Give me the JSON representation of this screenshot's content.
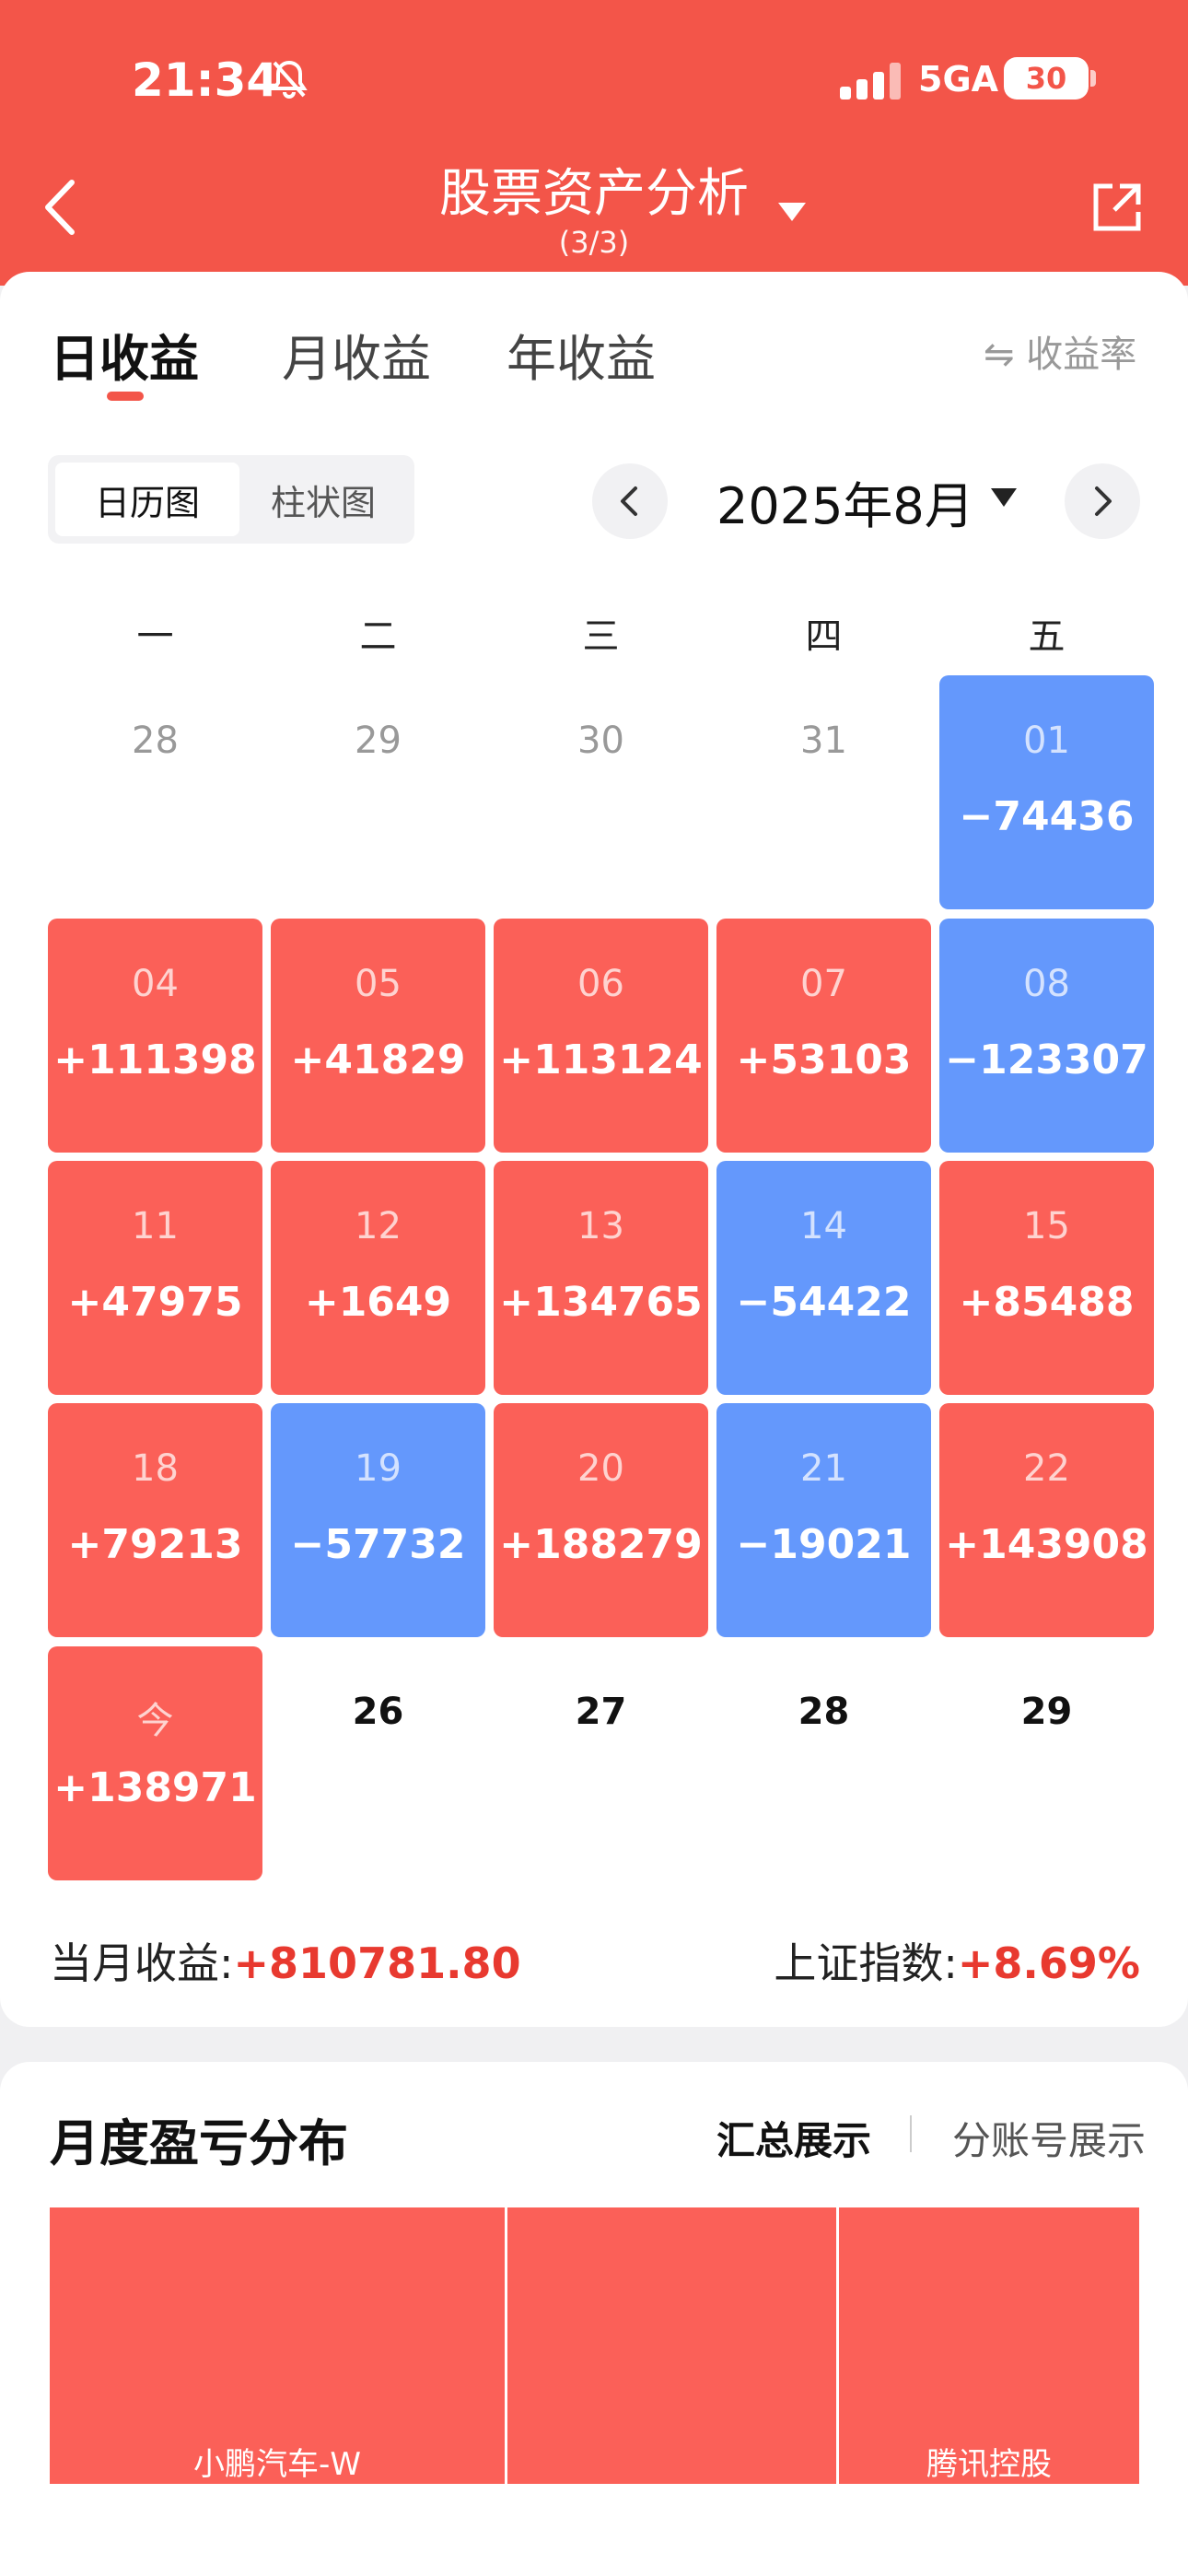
{
  "status_bar": {
    "time": "21:34",
    "network": "5GA",
    "battery": "30"
  },
  "header": {
    "title": "股票资产分析",
    "subtitle": "(3/3)"
  },
  "tabs": [
    {
      "label": "日收益",
      "active": true
    },
    {
      "label": "月收益",
      "active": false
    },
    {
      "label": "年收益",
      "active": false
    }
  ],
  "rate_toggle": "⇋ 收益率",
  "view_toggle": [
    "日历图",
    "柱状图"
  ],
  "month": "2025年8月",
  "weekdays": [
    "一",
    "二",
    "三",
    "四",
    "五"
  ],
  "calendar": [
    {
      "day": "28",
      "value": "",
      "type": "other"
    },
    {
      "day": "29",
      "value": "",
      "type": "other"
    },
    {
      "day": "30",
      "value": "",
      "type": "other"
    },
    {
      "day": "31",
      "value": "",
      "type": "other"
    },
    {
      "day": "01",
      "value": "−74436",
      "type": "neg"
    },
    {
      "day": "04",
      "value": "+111398",
      "type": "pos"
    },
    {
      "day": "05",
      "value": "+41829",
      "type": "pos"
    },
    {
      "day": "06",
      "value": "+113124",
      "type": "pos"
    },
    {
      "day": "07",
      "value": "+53103",
      "type": "pos"
    },
    {
      "day": "08",
      "value": "−123307",
      "type": "neg"
    },
    {
      "day": "11",
      "value": "+47975",
      "type": "pos"
    },
    {
      "day": "12",
      "value": "+1649",
      "type": "pos"
    },
    {
      "day": "13",
      "value": "+134765",
      "type": "pos"
    },
    {
      "day": "14",
      "value": "−54422",
      "type": "neg"
    },
    {
      "day": "15",
      "value": "+85488",
      "type": "pos"
    },
    {
      "day": "18",
      "value": "+79213",
      "type": "pos"
    },
    {
      "day": "19",
      "value": "−57732",
      "type": "neg"
    },
    {
      "day": "20",
      "value": "+188279",
      "type": "pos"
    },
    {
      "day": "21",
      "value": "−19021",
      "type": "neg"
    },
    {
      "day": "22",
      "value": "+143908",
      "type": "pos"
    },
    {
      "day": "今",
      "value": "+138971",
      "type": "pos"
    },
    {
      "day": "26",
      "value": "",
      "type": "future"
    },
    {
      "day": "27",
      "value": "",
      "type": "future"
    },
    {
      "day": "28",
      "value": "",
      "type": "future"
    },
    {
      "day": "29",
      "value": "",
      "type": "future"
    }
  ],
  "summary": {
    "month_label": "当月收益:",
    "month_value": "+810781.80",
    "index_label": "上证指数:",
    "index_value": "+8.69%"
  },
  "distribution": {
    "title": "月度盈亏分布",
    "tab_summary": "汇总展示",
    "tab_accounts": "分账号展示",
    "blocks": [
      {
        "label": "小鹏汽车-W"
      },
      {
        "label": ""
      },
      {
        "label": "腾讯控股"
      }
    ]
  },
  "colors": {
    "brand": "#f35549",
    "positive": "#fb6058",
    "negative": "#6498fc",
    "accent_text": "#e8392f"
  }
}
